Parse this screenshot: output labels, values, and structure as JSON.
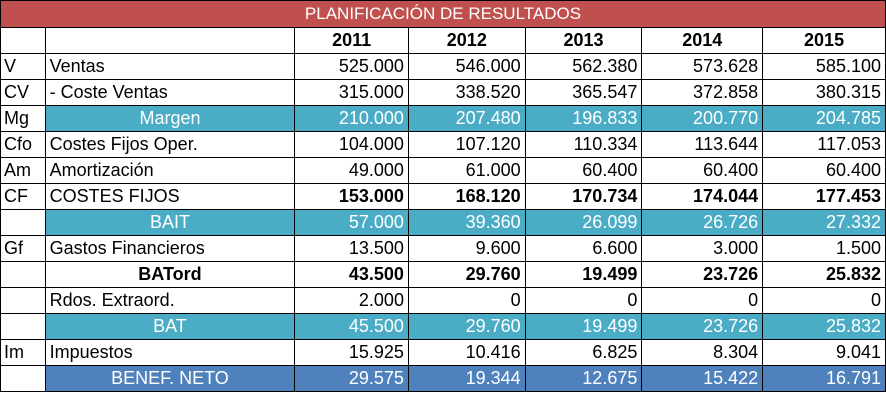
{
  "title": "PLANIFICACIÓN DE RESULTADOS",
  "years": [
    "2011",
    "2012",
    "2013",
    "2014",
    "2015"
  ],
  "colors": {
    "title_bg": "#c0504d",
    "highlight_teal": "#4bacc6",
    "highlight_blue": "#4f81bd"
  },
  "rows": [
    {
      "code": "V",
      "label": "Ventas",
      "values": [
        "525.000",
        "546.000",
        "562.380",
        "573.628",
        "585.100"
      ]
    },
    {
      "code": "CV",
      "label": "- Coste Ventas",
      "values": [
        "315.000",
        "338.520",
        "365.547",
        "372.858",
        "380.315"
      ]
    },
    {
      "code": "Mg",
      "label": "Margen",
      "values": [
        "210.000",
        "207.480",
        "196.833",
        "200.770",
        "204.785"
      ]
    },
    {
      "code": "Cfo",
      "label": "Costes Fijos Oper.",
      "values": [
        "104.000",
        "107.120",
        "110.334",
        "113.644",
        "117.053"
      ]
    },
    {
      "code": "Am",
      "label": "Amortización",
      "values": [
        "49.000",
        "61.000",
        "60.400",
        "60.400",
        "60.400"
      ]
    },
    {
      "code": "CF",
      "label": "COSTES FIJOS",
      "values": [
        "153.000",
        "168.120",
        "170.734",
        "174.044",
        "177.453"
      ]
    },
    {
      "code": "",
      "label": "BAIT",
      "values": [
        "57.000",
        "39.360",
        "26.099",
        "26.726",
        "27.332"
      ]
    },
    {
      "code": "Gf",
      "label": "Gastos Financieros",
      "values": [
        "13.500",
        "9.600",
        "6.600",
        "3.000",
        "1.500"
      ]
    },
    {
      "code": "",
      "label": "BATord",
      "values": [
        "43.500",
        "29.760",
        "19.499",
        "23.726",
        "25.832"
      ]
    },
    {
      "code": "",
      "label": "Rdos. Extraord.",
      "values": [
        "2.000",
        "0",
        "0",
        "0",
        "0"
      ]
    },
    {
      "code": "",
      "label": "BAT",
      "values": [
        "45.500",
        "29.760",
        "19.499",
        "23.726",
        "25.832"
      ]
    },
    {
      "code": "Im",
      "label": "Impuestos",
      "values": [
        "15.925",
        "10.416",
        "6.825",
        "8.304",
        "9.041"
      ]
    },
    {
      "code": "",
      "label": "BENEF. NETO",
      "values": [
        "29.575",
        "19.344",
        "12.675",
        "15.422",
        "16.791"
      ]
    }
  ]
}
